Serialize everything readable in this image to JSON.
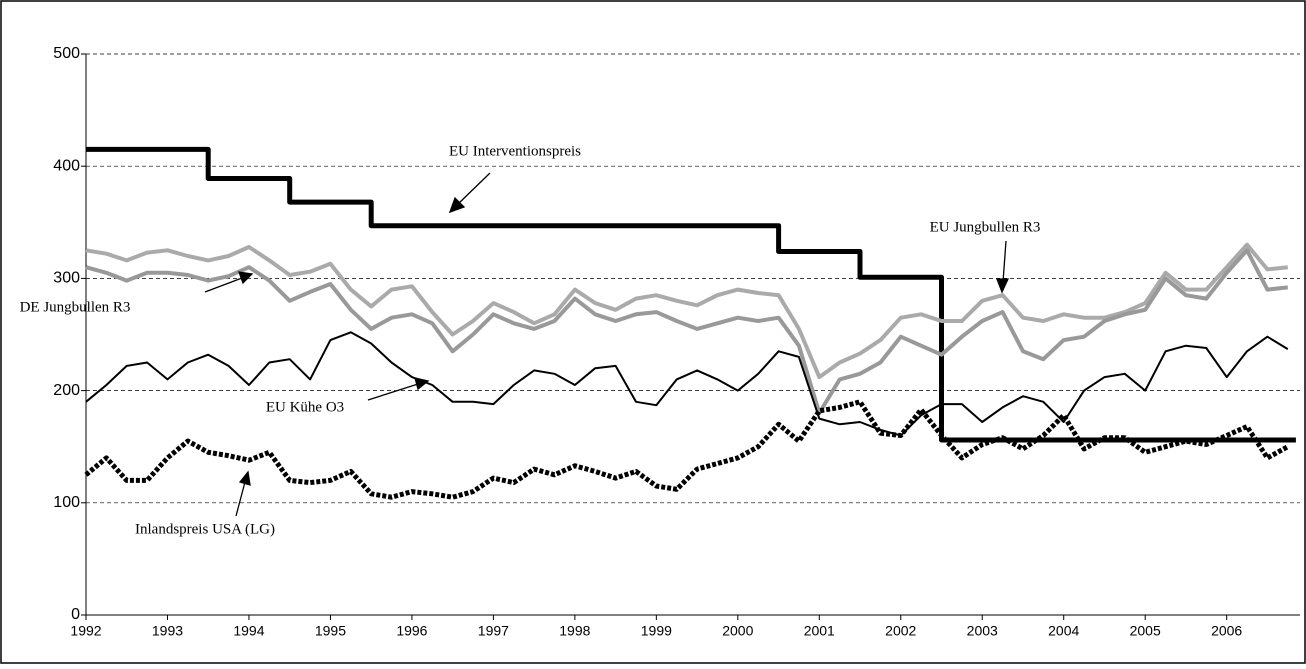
{
  "chart_data": {
    "type": "line",
    "x": [
      1992,
      1992.25,
      1992.5,
      1992.75,
      1993,
      1993.25,
      1993.5,
      1993.75,
      1994,
      1994.25,
      1994.5,
      1994.75,
      1995,
      1995.25,
      1995.5,
      1995.75,
      1996,
      1996.25,
      1996.5,
      1996.75,
      1997,
      1997.25,
      1997.5,
      1997.75,
      1998,
      1998.25,
      1998.5,
      1998.75,
      1999,
      1999.25,
      1999.5,
      1999.75,
      2000,
      2000.25,
      2000.5,
      2000.75,
      2001,
      2001.25,
      2001.5,
      2001.75,
      2002,
      2002.25,
      2002.5,
      2002.75,
      2003,
      2003.25,
      2003.5,
      2003.75,
      2004,
      2004.25,
      2004.5,
      2004.75,
      2005,
      2005.25,
      2005.5,
      2005.75,
      2006,
      2006.25,
      2006.5,
      2006.75
    ],
    "series": [
      {
        "name": "EU Interventionspreis",
        "color": "#000000",
        "x": [
          1992,
          1993.5,
          1993.5,
          1994.5,
          1994.5,
          1995.5,
          1995.5,
          2000.5,
          2000.5,
          2001.5,
          2001.5,
          2002.5,
          2002.5,
          2006.85
        ],
        "values": [
          415,
          415,
          389,
          389,
          368,
          368,
          347,
          347,
          324,
          324,
          301,
          301,
          156,
          156
        ]
      },
      {
        "name": "EU Jungbullen R3",
        "color": "#aaaaaa",
        "values": [
          325,
          322,
          316,
          323,
          325,
          320,
          316,
          320,
          328,
          316,
          303,
          306,
          313,
          290,
          275,
          290,
          293,
          270,
          250,
          262,
          278,
          270,
          260,
          268,
          290,
          278,
          272,
          282,
          285,
          280,
          276,
          285,
          290,
          287,
          285,
          255,
          212,
          225,
          233,
          245,
          265,
          268,
          262,
          262,
          280,
          285,
          265,
          262,
          268,
          265,
          265,
          270,
          278,
          305,
          290,
          290,
          310,
          330,
          308,
          310
        ]
      },
      {
        "name": "DE Jungbullen R3",
        "color": "#999999",
        "values": [
          310,
          305,
          298,
          305,
          305,
          303,
          298,
          302,
          310,
          298,
          280,
          288,
          295,
          272,
          255,
          265,
          268,
          260,
          235,
          250,
          268,
          260,
          255,
          262,
          282,
          268,
          262,
          268,
          270,
          262,
          255,
          260,
          265,
          262,
          265,
          240,
          180,
          210,
          215,
          225,
          248,
          240,
          232,
          248,
          262,
          270,
          235,
          228,
          245,
          248,
          262,
          268,
          272,
          300,
          285,
          282,
          305,
          325,
          290,
          292
        ]
      },
      {
        "name": "EU Kühe O3",
        "color": "#000000",
        "values": [
          190,
          205,
          222,
          225,
          210,
          225,
          232,
          222,
          205,
          225,
          228,
          210,
          245,
          252,
          242,
          225,
          212,
          205,
          190,
          190,
          188,
          205,
          218,
          215,
          205,
          220,
          222,
          190,
          187,
          210,
          218,
          210,
          200,
          215,
          235,
          230,
          175,
          170,
          172,
          165,
          160,
          178,
          188,
          188,
          172,
          185,
          195,
          190,
          172,
          200,
          212,
          215,
          200,
          235,
          240,
          238,
          212,
          235,
          248,
          237
        ]
      },
      {
        "name": "Inlandspreis USA (LG)",
        "color": "#000000",
        "values": [
          125,
          140,
          120,
          120,
          140,
          155,
          145,
          142,
          138,
          145,
          120,
          118,
          120,
          128,
          108,
          105,
          110,
          108,
          105,
          110,
          122,
          118,
          130,
          125,
          133,
          128,
          122,
          128,
          115,
          112,
          130,
          135,
          140,
          150,
          170,
          155,
          182,
          185,
          190,
          162,
          160,
          183,
          160,
          140,
          152,
          158,
          148,
          160,
          178,
          148,
          158,
          158,
          145,
          150,
          155,
          152,
          160,
          168,
          140,
          150
        ]
      }
    ],
    "xlim": [
      1992,
      2006.9
    ],
    "xticks": [
      1992,
      1993,
      1994,
      1995,
      1996,
      1997,
      1998,
      1999,
      2000,
      2001,
      2002,
      2003,
      2004,
      2005,
      2006
    ],
    "ylim": [
      0,
      500
    ],
    "yticks": [
      0,
      100,
      200,
      300,
      400,
      500
    ],
    "grid": true
  }
}
